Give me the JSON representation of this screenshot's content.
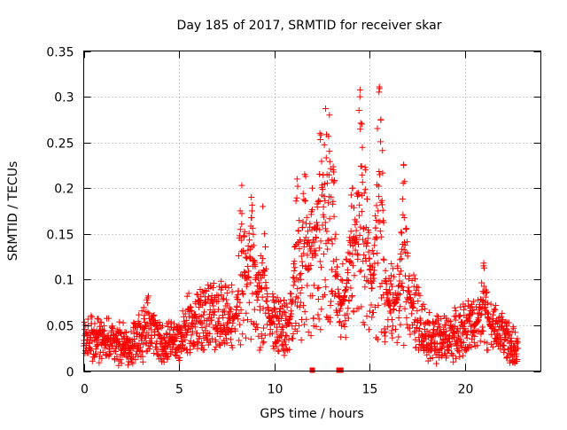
{
  "chart_data": {
    "type": "scatter",
    "title": "Day 185 of 2017, SRMTID for receiver skar",
    "xlabel": "GPS time / hours",
    "ylabel": "SRMTID / TECUs",
    "xlim": [
      0,
      24
    ],
    "ylim": [
      0,
      0.35
    ],
    "x_ticks": [
      0,
      5,
      10,
      15,
      20
    ],
    "x_tick_labels": [
      "0",
      "5",
      "10",
      "15",
      "20"
    ],
    "y_ticks": [
      0,
      0.05,
      0.1,
      0.15,
      0.2,
      0.25,
      0.3,
      0.35
    ],
    "y_tick_labels": [
      "0",
      "0.05",
      "0.1",
      "0.15",
      "0.2",
      "0.25",
      "0.3",
      "0.35"
    ],
    "grid": true,
    "marker": "+",
    "color": "#ff0000",
    "sample_step_hours": 0.0111,
    "x_end": 22.8,
    "baseline_envelope": {
      "x": [
        0,
        1,
        2,
        2.5,
        3,
        3.5,
        4,
        4.5,
        5,
        5.5,
        6,
        6.5,
        7,
        7.5,
        8,
        8.5,
        9,
        9.5,
        10,
        10.5,
        11,
        11.5,
        12,
        12.5,
        13,
        13.5,
        14,
        14.5,
        15,
        15.5,
        16,
        16.5,
        17,
        17.5,
        18,
        18.5,
        19,
        19.5,
        20,
        20.5,
        21,
        21.5,
        22,
        22.8
      ],
      "y": [
        0.035,
        0.035,
        0.03,
        0.025,
        0.04,
        0.05,
        0.03,
        0.03,
        0.035,
        0.05,
        0.055,
        0.06,
        0.06,
        0.06,
        0.055,
        0.08,
        0.075,
        0.06,
        0.05,
        0.045,
        0.06,
        0.08,
        0.1,
        0.12,
        0.09,
        0.07,
        0.1,
        0.11,
        0.09,
        0.08,
        0.07,
        0.075,
        0.08,
        0.06,
        0.04,
        0.035,
        0.035,
        0.04,
        0.045,
        0.05,
        0.055,
        0.045,
        0.04,
        0.02
      ]
    },
    "spikes": [
      {
        "x": 8.3,
        "y": 0.203
      },
      {
        "x": 8.8,
        "y": 0.19
      },
      {
        "x": 9.4,
        "y": 0.18
      },
      {
        "x": 11.2,
        "y": 0.21
      },
      {
        "x": 11.6,
        "y": 0.215
      },
      {
        "x": 12.0,
        "y": 0.2
      },
      {
        "x": 12.4,
        "y": 0.26
      },
      {
        "x": 12.7,
        "y": 0.287
      },
      {
        "x": 12.9,
        "y": 0.28
      },
      {
        "x": 13.1,
        "y": 0.22
      },
      {
        "x": 14.1,
        "y": 0.2
      },
      {
        "x": 14.5,
        "y": 0.3
      },
      {
        "x": 14.6,
        "y": 0.27
      },
      {
        "x": 14.8,
        "y": 0.22
      },
      {
        "x": 15.5,
        "y": 0.305
      },
      {
        "x": 15.6,
        "y": 0.275
      },
      {
        "x": 16.8,
        "y": 0.225
      },
      {
        "x": 21.0,
        "y": 0.118
      }
    ],
    "zero_markers_x": [
      12.0,
      13.4,
      13.5
    ]
  }
}
